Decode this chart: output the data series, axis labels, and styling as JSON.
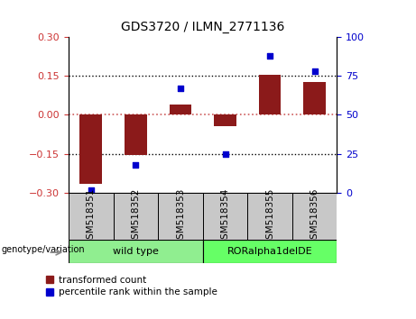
{
  "title": "GDS3720 / ILMN_2771136",
  "samples": [
    "GSM518351",
    "GSM518352",
    "GSM518353",
    "GSM518354",
    "GSM518355",
    "GSM518356"
  ],
  "bar_values": [
    -0.265,
    -0.155,
    0.04,
    -0.045,
    0.155,
    0.125
  ],
  "dot_values_pct": [
    2,
    18,
    67,
    25,
    88,
    78
  ],
  "ylim_left": [
    -0.3,
    0.3
  ],
  "ylim_right": [
    0,
    100
  ],
  "yticks_left": [
    -0.3,
    -0.15,
    0,
    0.15,
    0.3
  ],
  "yticks_right": [
    0,
    25,
    50,
    75,
    100
  ],
  "bar_color": "#8B1A1A",
  "dot_color": "#0000CD",
  "zero_line_color": "#CD5C5C",
  "hline_color": "#000000",
  "group1_label": "wild type",
  "group1_color": "#90EE90",
  "group2_label": "RORalpha1delDE",
  "group2_color": "#66FF66",
  "genotype_label": "genotype/variation",
  "legend1": "transformed count",
  "legend2": "percentile rank within the sample",
  "tick_label_color_left": "#CC3333",
  "tick_label_color_right": "#0000CC",
  "sample_box_color": "#C8C8C8",
  "bar_width": 0.5
}
